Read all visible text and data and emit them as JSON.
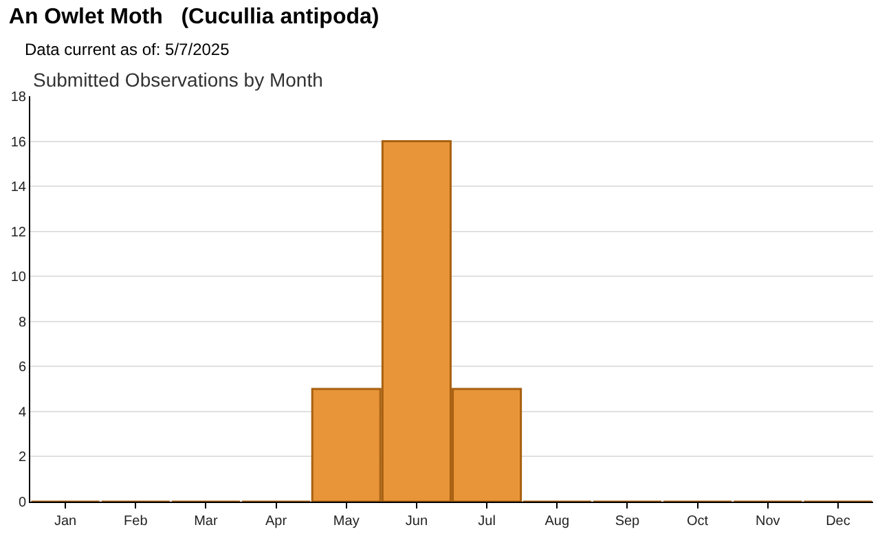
{
  "chart_data": {
    "type": "bar",
    "title": "An Owlet Moth   (Cucullia antipoda)",
    "subtitle": "Data current as of: 5/7/2025",
    "annotations": [
      "Submitted Observations by Month"
    ],
    "categories": [
      "Jan",
      "Feb",
      "Mar",
      "Apr",
      "May",
      "Jun",
      "Jul",
      "Aug",
      "Sep",
      "Oct",
      "Nov",
      "Dec"
    ],
    "values": [
      0,
      0,
      0,
      0,
      5,
      16,
      5,
      0,
      0,
      0,
      0,
      0
    ],
    "color": "#e8953a",
    "ylim": [
      0,
      18
    ],
    "yticks": [
      0,
      2,
      4,
      6,
      8,
      10,
      12,
      14,
      16,
      18
    ],
    "grid": "y"
  }
}
